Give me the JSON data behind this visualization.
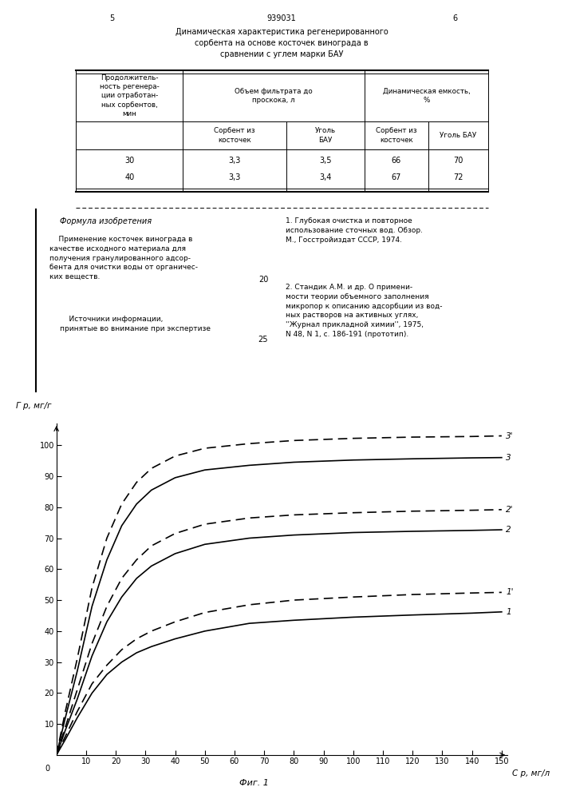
{
  "page_number_left": "5",
  "page_number_center": "939031",
  "page_number_right": "6",
  "table_title": "Динамическая характеристика регенерированного\nсорбента на основе косточек винограда в\nсравнении с углем марки БАУ",
  "col_header1": "Продолжитель-\nность регенера-\nции отработан-\nных сорбентов,\nмин",
  "col_header2a": "Объем фильтрата до\nпроскока, л",
  "col_header2b_1": "Сорбент из\nкосточек",
  "col_header2b_2": "Уголь\nБАУ",
  "col_header3a": "Динамическая емкость,\n%",
  "col_header3b_1": "Сорбент из\nкосточек",
  "col_header3b_2": "Уголь БАУ",
  "table_data": [
    [
      30,
      "3,3",
      "3,5",
      66,
      70
    ],
    [
      40,
      "3,3",
      "3,4",
      67,
      72
    ]
  ],
  "formula_title": "Формула изобретения",
  "formula_text": "    Применение косточек винограда в\nкачестве исходного материала для\nполучения гранулированного адсор-\nбента для очистки воды от органичес-\nких веществ.",
  "sources_text": "    Источники информации,\nпринятые во внимание при экспертизе",
  "line_number_20": "20",
  "line_number_25": "25",
  "ref1": "1. Глубокая очистка и повторное\nиспользование сточных вод. Обзор.\nМ., Госстройиздат СССР, 1974.",
  "ref2": "2. Стандик А.М. и др. О примени-\nмости теории объемного заполнения\nмикропор к описанию адсорбции из вод-\nных растворов на активных углях,\n''Журнал прикладной химии'', 1975,\nN 48, N 1, с. 186-191 (прототип).",
  "ylabel": "Г р, мг/г",
  "xlabel": "С р, мг/л",
  "fig_caption": "Фиг. 1",
  "xlim": [
    0,
    152
  ],
  "ylim": [
    0,
    107
  ],
  "xticks": [
    10,
    20,
    30,
    40,
    50,
    60,
    70,
    80,
    90,
    100,
    110,
    120,
    130,
    140,
    150
  ],
  "yticks": [
    10,
    20,
    30,
    40,
    50,
    60,
    70,
    80,
    90,
    100
  ],
  "curves": {
    "1_solid": {
      "x": [
        0,
        3,
        7,
        12,
        17,
        22,
        27,
        32,
        40,
        50,
        65,
        80,
        100,
        120,
        140,
        150
      ],
      "y": [
        0,
        5,
        12,
        20,
        26,
        30,
        33,
        35,
        37.5,
        40,
        42.5,
        43.5,
        44.5,
        45.2,
        45.8,
        46.2
      ],
      "style": "solid",
      "label": "1"
    },
    "1_dash": {
      "x": [
        0,
        3,
        7,
        12,
        17,
        22,
        27,
        32,
        40,
        50,
        65,
        80,
        100,
        120,
        140,
        150
      ],
      "y": [
        0,
        6,
        14,
        23,
        29,
        34,
        37.5,
        40,
        43,
        46,
        48.5,
        50,
        51,
        51.8,
        52.3,
        52.5
      ],
      "style": "dashed",
      "label": "1'"
    },
    "2_solid": {
      "x": [
        0,
        3,
        7,
        12,
        17,
        22,
        27,
        32,
        40,
        50,
        65,
        80,
        100,
        120,
        140,
        150
      ],
      "y": [
        0,
        8,
        18,
        32,
        43,
        51,
        57,
        61,
        65,
        68,
        70,
        71,
        71.8,
        72.2,
        72.5,
        72.7
      ],
      "style": "solid",
      "label": "2"
    },
    "2_dash": {
      "x": [
        0,
        3,
        7,
        12,
        17,
        22,
        27,
        32,
        40,
        50,
        65,
        80,
        100,
        120,
        140,
        150
      ],
      "y": [
        0,
        9,
        21,
        36,
        48,
        57,
        63,
        67.5,
        71.5,
        74.5,
        76.5,
        77.5,
        78.2,
        78.7,
        79.0,
        79.2
      ],
      "style": "dashed",
      "label": "2'"
    },
    "3_solid": {
      "x": [
        0,
        3,
        7,
        12,
        17,
        22,
        27,
        32,
        40,
        50,
        65,
        80,
        100,
        120,
        140,
        150
      ],
      "y": [
        0,
        12,
        27,
        48,
        63,
        74,
        81,
        85.5,
        89.5,
        92,
        93.5,
        94.5,
        95.2,
        95.6,
        95.9,
        96.0
      ],
      "style": "solid",
      "label": "3"
    },
    "3_dash": {
      "x": [
        0,
        3,
        7,
        12,
        17,
        22,
        27,
        32,
        40,
        50,
        65,
        80,
        100,
        120,
        140,
        150
      ],
      "y": [
        0,
        14,
        31,
        54,
        70,
        81,
        88,
        92.5,
        96.5,
        99,
        100.5,
        101.5,
        102.2,
        102.6,
        102.8,
        103.0
      ],
      "style": "dashed",
      "label": "3'"
    }
  }
}
